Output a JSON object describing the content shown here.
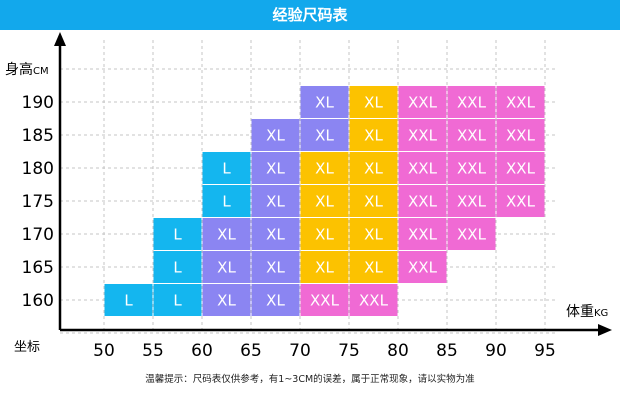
{
  "banner_title": "经验尺码表",
  "footer_note": "温馨提示：尺码表仅供参考，有1~3CM的误差，属于正常现象，请以实物为准",
  "colors": {
    "banner": "#12a8ec",
    "L": "#14b6ef",
    "XL_blue": "#8b85f2",
    "XL_yellow": "#fcc200",
    "XXL": "#f06ad4"
  },
  "chart_data": {
    "type": "table",
    "title": "经验尺码表",
    "xlabel_main": "体重",
    "xlabel_unit": "KG",
    "ylabel_main": "身高",
    "ylabel_unit": "CM",
    "corner_label": "坐标",
    "x_ticks": [
      "50",
      "55",
      "60",
      "65",
      "70",
      "75",
      "80",
      "85",
      "90",
      "95"
    ],
    "y_ticks": [
      "190",
      "185",
      "180",
      "175",
      "170",
      "165",
      "160"
    ],
    "xlim": [
      50,
      95
    ],
    "ylim": [
      157.5,
      192.5
    ],
    "cell_width": 5,
    "cell_height": 5,
    "grid": true,
    "cells": [
      {
        "x0": 50,
        "y": 160,
        "size": "L",
        "color": "L"
      },
      {
        "x0": 55,
        "y": 160,
        "size": "L",
        "color": "L"
      },
      {
        "x0": 60,
        "y": 160,
        "size": "XL",
        "color": "XL_blue"
      },
      {
        "x0": 65,
        "y": 160,
        "size": "XL",
        "color": "XL_blue"
      },
      {
        "x0": 70,
        "y": 160,
        "size": "XXL",
        "color": "XXL"
      },
      {
        "x0": 75,
        "y": 160,
        "size": "XXL",
        "color": "XXL"
      },
      {
        "x0": 55,
        "y": 165,
        "size": "L",
        "color": "L"
      },
      {
        "x0": 60,
        "y": 165,
        "size": "XL",
        "color": "XL_blue"
      },
      {
        "x0": 65,
        "y": 165,
        "size": "XL",
        "color": "XL_blue"
      },
      {
        "x0": 70,
        "y": 165,
        "size": "XL",
        "color": "XL_yellow"
      },
      {
        "x0": 75,
        "y": 165,
        "size": "XL",
        "color": "XL_yellow"
      },
      {
        "x0": 80,
        "y": 165,
        "size": "XXL",
        "color": "XXL"
      },
      {
        "x0": 55,
        "y": 170,
        "size": "L",
        "color": "L"
      },
      {
        "x0": 60,
        "y": 170,
        "size": "XL",
        "color": "XL_blue"
      },
      {
        "x0": 65,
        "y": 170,
        "size": "XL",
        "color": "XL_blue"
      },
      {
        "x0": 70,
        "y": 170,
        "size": "XL",
        "color": "XL_yellow"
      },
      {
        "x0": 75,
        "y": 170,
        "size": "XL",
        "color": "XL_yellow"
      },
      {
        "x0": 80,
        "y": 170,
        "size": "XXL",
        "color": "XXL"
      },
      {
        "x0": 85,
        "y": 170,
        "size": "XXL",
        "color": "XXL"
      },
      {
        "x0": 60,
        "y": 175,
        "size": "L",
        "color": "L"
      },
      {
        "x0": 65,
        "y": 175,
        "size": "XL",
        "color": "XL_blue"
      },
      {
        "x0": 70,
        "y": 175,
        "size": "XL",
        "color": "XL_yellow"
      },
      {
        "x0": 75,
        "y": 175,
        "size": "XL",
        "color": "XL_yellow"
      },
      {
        "x0": 80,
        "y": 175,
        "size": "XXL",
        "color": "XXL"
      },
      {
        "x0": 85,
        "y": 175,
        "size": "XXL",
        "color": "XXL"
      },
      {
        "x0": 90,
        "y": 175,
        "size": "XXL",
        "color": "XXL"
      },
      {
        "x0": 60,
        "y": 180,
        "size": "L",
        "color": "L"
      },
      {
        "x0": 65,
        "y": 180,
        "size": "XL",
        "color": "XL_blue"
      },
      {
        "x0": 70,
        "y": 180,
        "size": "XL",
        "color": "XL_yellow"
      },
      {
        "x0": 75,
        "y": 180,
        "size": "XL",
        "color": "XL_yellow"
      },
      {
        "x0": 80,
        "y": 180,
        "size": "XXL",
        "color": "XXL"
      },
      {
        "x0": 85,
        "y": 180,
        "size": "XXL",
        "color": "XXL"
      },
      {
        "x0": 90,
        "y": 180,
        "size": "XXL",
        "color": "XXL"
      },
      {
        "x0": 65,
        "y": 185,
        "size": "XL",
        "color": "XL_blue"
      },
      {
        "x0": 70,
        "y": 185,
        "size": "XL",
        "color": "XL_blue"
      },
      {
        "x0": 75,
        "y": 185,
        "size": "XL",
        "color": "XL_yellow"
      },
      {
        "x0": 80,
        "y": 185,
        "size": "XXL",
        "color": "XXL"
      },
      {
        "x0": 85,
        "y": 185,
        "size": "XXL",
        "color": "XXL"
      },
      {
        "x0": 90,
        "y": 185,
        "size": "XXL",
        "color": "XXL"
      },
      {
        "x0": 70,
        "y": 190,
        "size": "XL",
        "color": "XL_blue"
      },
      {
        "x0": 75,
        "y": 190,
        "size": "XL",
        "color": "XL_yellow"
      },
      {
        "x0": 80,
        "y": 190,
        "size": "XXL",
        "color": "XXL"
      },
      {
        "x0": 85,
        "y": 190,
        "size": "XXL",
        "color": "XXL"
      },
      {
        "x0": 90,
        "y": 190,
        "size": "XXL",
        "color": "XXL"
      }
    ]
  }
}
